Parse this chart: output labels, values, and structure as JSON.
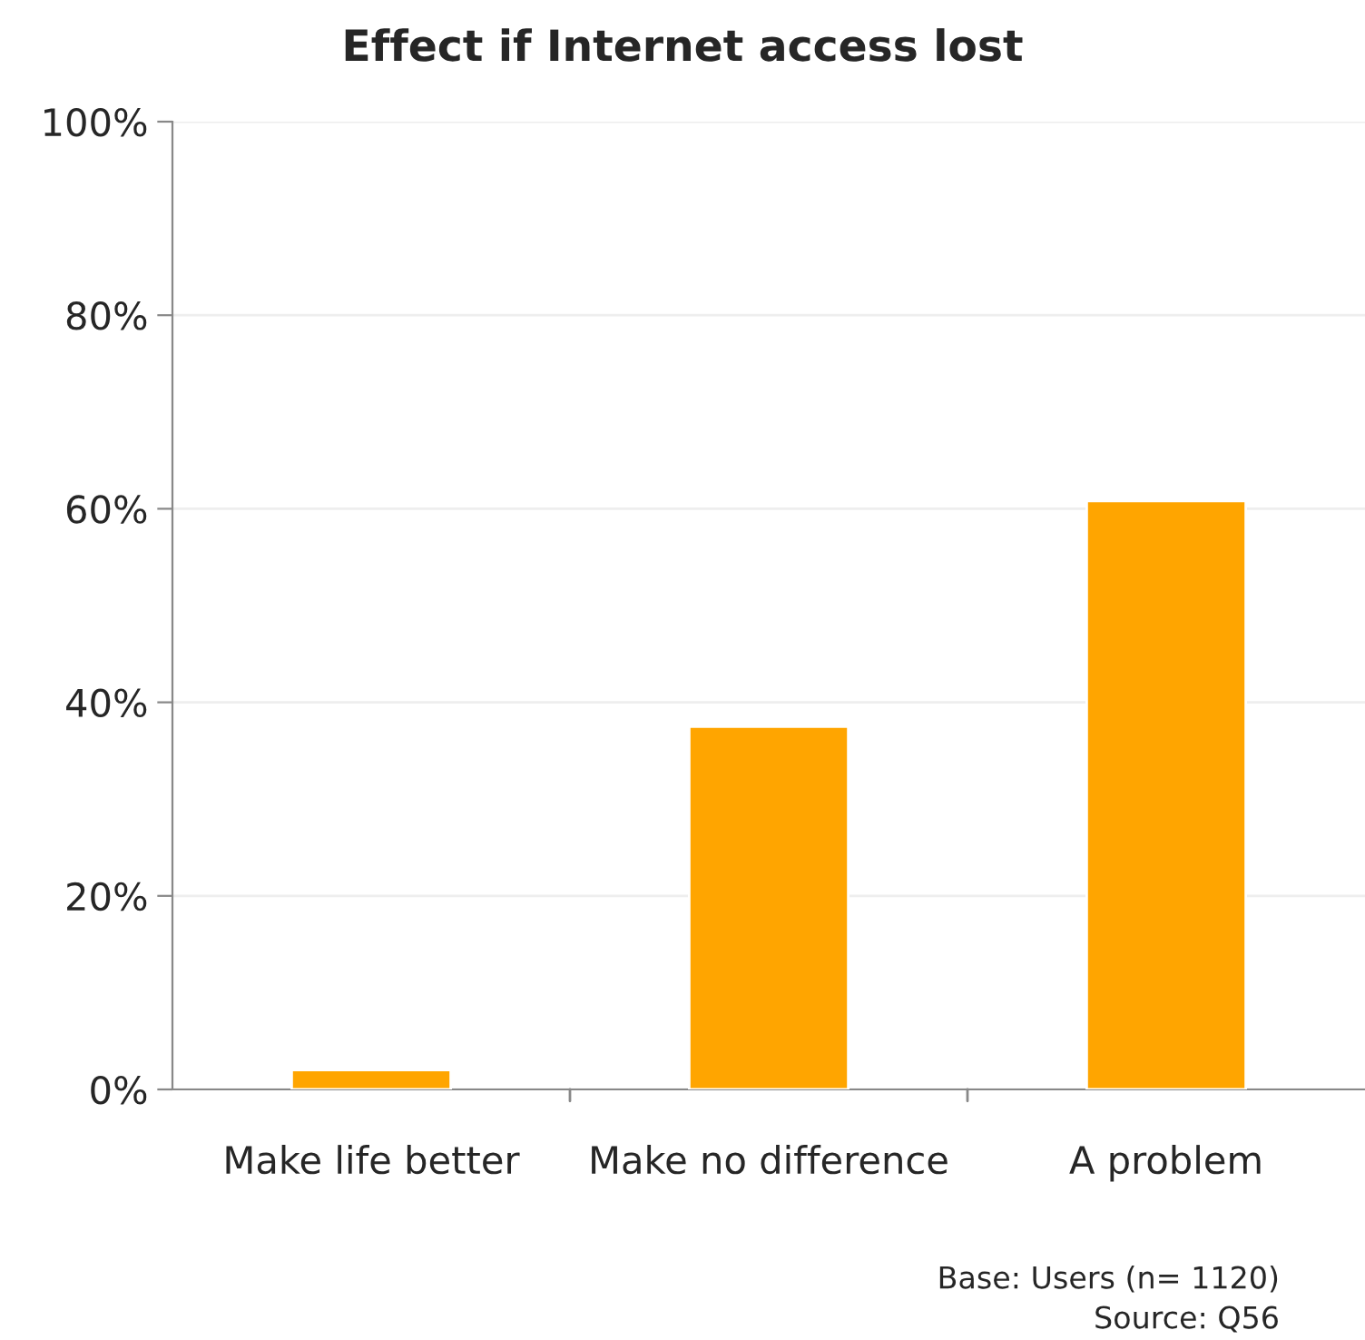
{
  "chart_data": {
    "type": "bar",
    "title": "Effect if Internet access lost",
    "categories": [
      "Make life better",
      "Make no difference",
      "A problem"
    ],
    "values": [
      2,
      37.5,
      60.8
    ],
    "color": "#ffa500",
    "ylim": [
      0,
      100
    ],
    "yticks": [
      {
        "value": 0,
        "label": "0%"
      },
      {
        "value": 20,
        "label": "20%"
      },
      {
        "value": 40,
        "label": "40%"
      },
      {
        "value": 60,
        "label": "60%"
      },
      {
        "value": 80,
        "label": "80%"
      },
      {
        "value": 100,
        "label": "100%"
      }
    ],
    "grid": "y",
    "annotations": [
      "Base: Users (n= 1120)",
      "Source: Q56"
    ]
  }
}
